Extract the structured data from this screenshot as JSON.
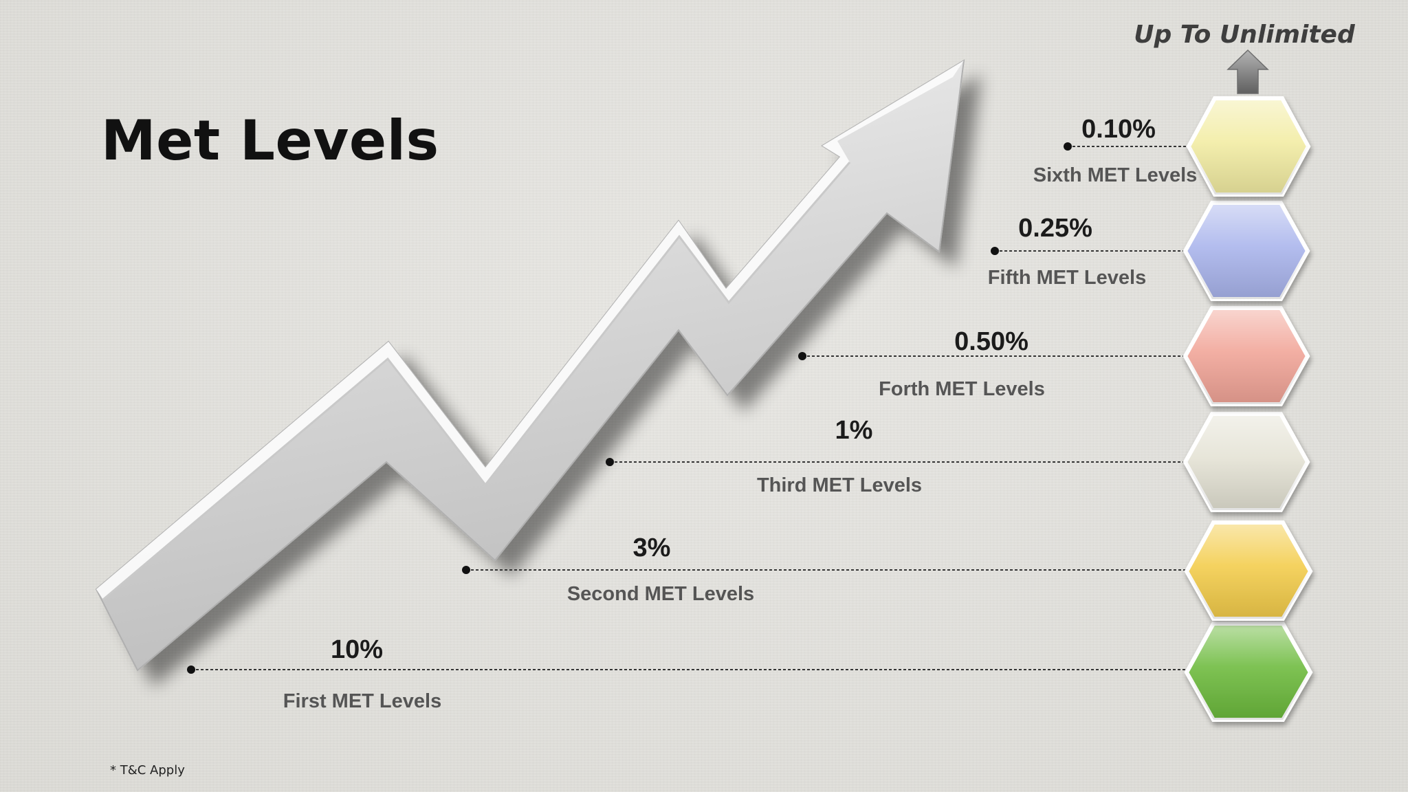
{
  "title": "Met Levels",
  "top_label": "Up To Unlimited",
  "footnote": "* T&C Apply",
  "levels": [
    {
      "name": "First MET Levels",
      "percent": "10%",
      "color": "#6cba3c"
    },
    {
      "name": "Second MET Levels",
      "percent": "3%",
      "color": "#f3cc4a"
    },
    {
      "name": "Third MET Levels",
      "percent": "1%",
      "color": "#e4e2d4"
    },
    {
      "name": "Forth MET Levels",
      "percent": "0.50%",
      "color": "#f1a497"
    },
    {
      "name": "Fifth MET Levels",
      "percent": "0.25%",
      "color": "#a9b4ec"
    },
    {
      "name": "Sixth MET Levels",
      "percent": "0.10%",
      "color": "#f2eca2"
    }
  ]
}
